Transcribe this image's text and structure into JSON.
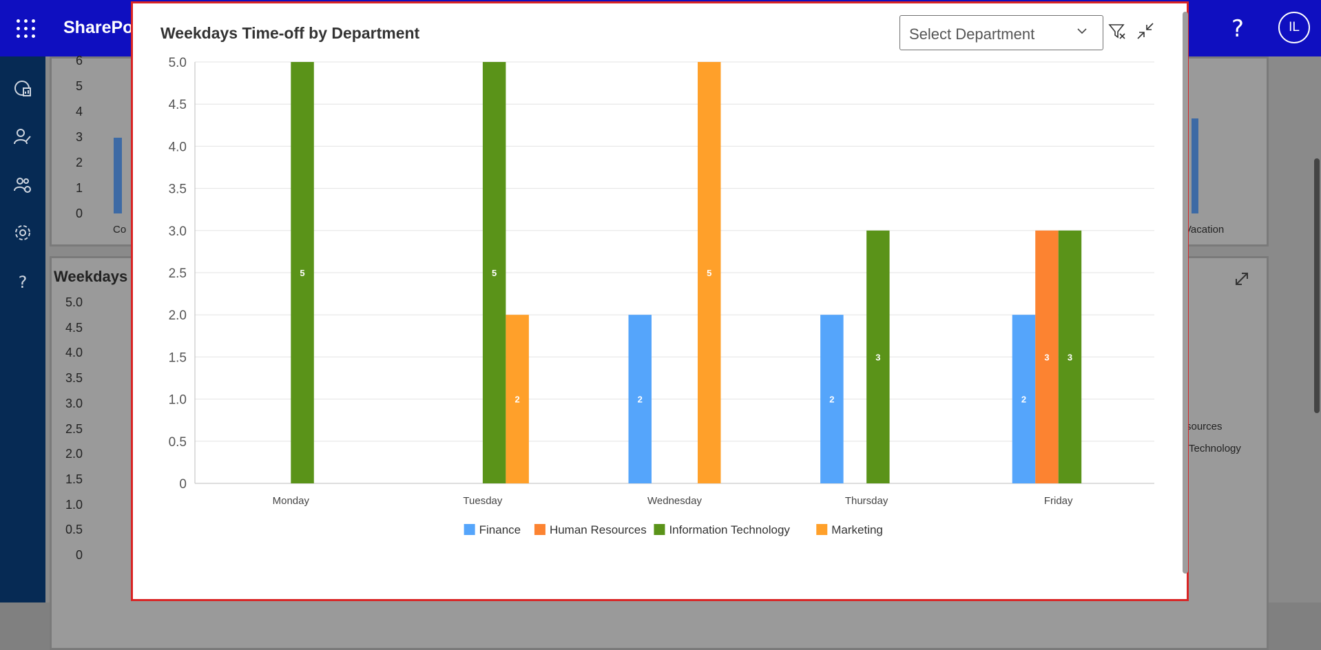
{
  "app": {
    "brand": "SharePo",
    "avatar_initials": "IL",
    "help_glyph": "?",
    "nav_icons": [
      "analytics-icon",
      "person-edit-icon",
      "people-sync-icon",
      "gear-icon",
      "help-icon"
    ]
  },
  "background": {
    "card1_xlabel_left": "Co",
    "card1_xlabel_right": "Vacation",
    "card2_title": "Weekdays",
    "card1_ticks": [
      "6",
      "5",
      "4",
      "3",
      "2",
      "1",
      "0"
    ],
    "card2_ticks": [
      "5.0",
      "4.5",
      "4.0",
      "3.5",
      "3.0",
      "2.5",
      "2.0",
      "1.5",
      "1.0",
      "0.5",
      "0"
    ],
    "legend_fragment_1": "sources",
    "legend_fragment_2": "Technology"
  },
  "modal": {
    "title": "Weekdays Time-off by Department",
    "select_placeholder": "Select Department"
  },
  "chart_data": {
    "type": "bar",
    "title": "Weekdays Time-off by Department",
    "categories": [
      "Monday",
      "Tuesday",
      "Wednesday",
      "Thursday",
      "Friday"
    ],
    "series": [
      {
        "name": "Finance",
        "color": "#55a5fb",
        "values": [
          0,
          0,
          2,
          2,
          2
        ]
      },
      {
        "name": "Human Resources",
        "color": "#fc8331",
        "values": [
          0,
          0,
          0,
          0,
          3
        ]
      },
      {
        "name": "Information Technology",
        "color": "#5a9319",
        "values": [
          5,
          5,
          0,
          3,
          3
        ]
      },
      {
        "name": "Marketing",
        "color": "#ffa02a",
        "values": [
          0,
          2,
          5,
          0,
          0
        ]
      }
    ],
    "ylim": [
      0,
      5
    ],
    "yticks": [
      "0",
      "0.5",
      "1.0",
      "1.5",
      "2.0",
      "2.5",
      "3.0",
      "3.5",
      "4.0",
      "4.5",
      "5.0"
    ],
    "grid": true,
    "legend": "bottom-center"
  }
}
